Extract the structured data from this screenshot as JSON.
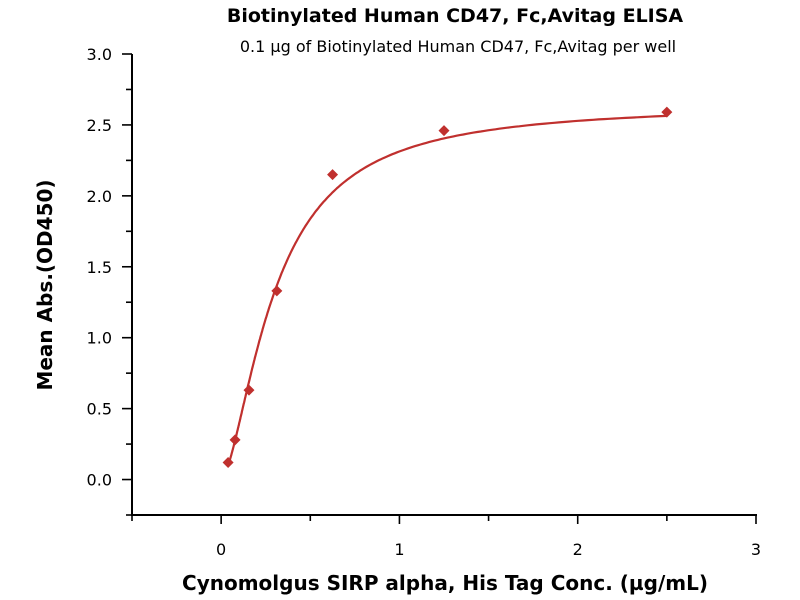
{
  "chart_data": {
    "type": "scatter",
    "title": "Biotinylated Human CD47, Fc,Avitag ELISA",
    "subtitle": "0.1 µg of Biotinylated Human CD47, Fc,Avitag per well",
    "xlabel": "Cynomolgus SIRP alpha, His Tag Conc. (µg/mL)",
    "ylabel": "Mean Abs.(OD450)",
    "xlim": [
      -0.5,
      3
    ],
    "ylim": [
      -0.25,
      3
    ],
    "xticks": [
      "0",
      "1",
      "2",
      "3"
    ],
    "yticks": [
      "0.0",
      "0.5",
      "1.0",
      "1.5",
      "2.0",
      "2.5",
      "3.0"
    ],
    "grid": false,
    "series": [
      {
        "name": "Cynomolgus SIRP alpha, His Tag",
        "color": "#c0302e",
        "marker": "diamond",
        "x": [
          0.039,
          0.078,
          0.156,
          0.3125,
          0.625,
          1.25,
          2.5
        ],
        "y": [
          0.12,
          0.28,
          0.63,
          1.33,
          2.15,
          2.46,
          2.59
        ],
        "fit": {
          "model": "4PL",
          "bottom": 0.0,
          "top": 2.65,
          "ec50": 0.3,
          "hill": 1.6
        }
      }
    ]
  }
}
